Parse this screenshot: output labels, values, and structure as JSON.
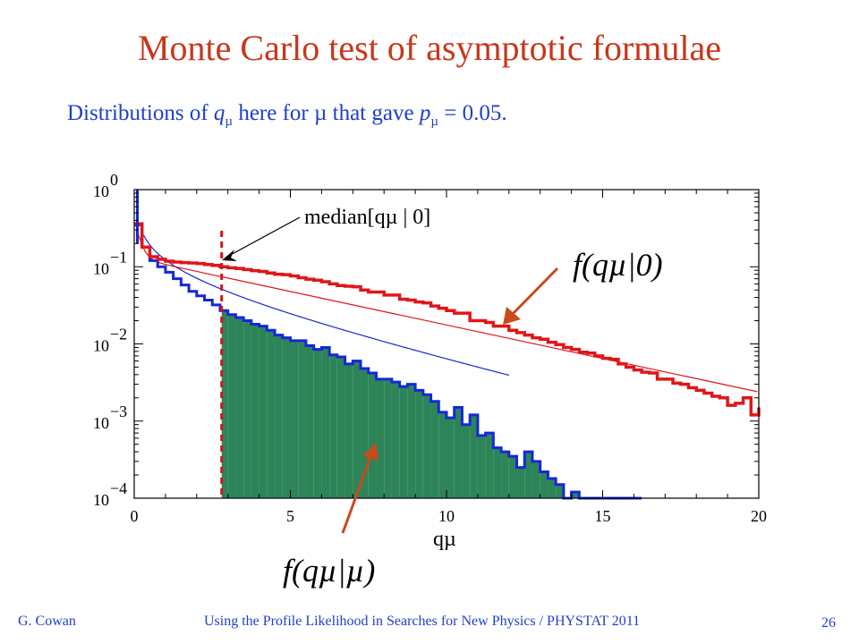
{
  "slide": {
    "title": "Monte Carlo test of asymptotic formulae",
    "subtitle_pre": "Distributions of ",
    "subtitle_q": "q",
    "subtitle_mu1": "µ",
    "subtitle_mid": " here for ",
    "subtitle_mu2": "µ",
    "subtitle_mid2": " that gave ",
    "subtitle_p": "p",
    "subtitle_mu3": "µ",
    "subtitle_post": " = 0.05.",
    "author": "G. Cowan",
    "talk": "Using the Profile Likelihood in Searches for New Physics / PHYSTAT 2011",
    "page": "26"
  },
  "colors": {
    "title": "#c8371a",
    "text": "#1f3fc8",
    "red_hist": "#e0161a",
    "blue_hist": "#1428d8",
    "green_fill": "#2e8459",
    "arrow": "#c84a1e"
  },
  "chart_data": {
    "type": "step-histogram",
    "xlabel": "qµ",
    "xlim": [
      0,
      20
    ],
    "ylim": [
      0.0001,
      1
    ],
    "yscale": "log",
    "x_ticks": [
      "0",
      "5",
      "10",
      "15",
      "20"
    ],
    "y_ticks": [
      {
        "base": "10",
        "exp": "0"
      },
      {
        "base": "10",
        "exp": "−1"
      },
      {
        "base": "10",
        "exp": "−2"
      },
      {
        "base": "10",
        "exp": "−3"
      },
      {
        "base": "10",
        "exp": "−4"
      }
    ],
    "median_line_x": 2.8,
    "annotations": {
      "median": "median[qµ | 0]",
      "f0": "f(qµ|0)",
      "fmu": "f(qµ|µ)"
    },
    "series": [
      {
        "name": "f(qµ|0)",
        "color": "#e0161a",
        "bin_width": 0.25,
        "bins": [
          [
            0,
            0.36
          ],
          [
            0.25,
            0.18
          ],
          [
            0.5,
            0.135
          ],
          [
            0.75,
            0.125
          ],
          [
            1,
            0.118
          ],
          [
            1.25,
            0.115
          ],
          [
            1.5,
            0.113
          ],
          [
            1.75,
            0.112
          ],
          [
            2,
            0.11
          ],
          [
            2.25,
            0.107
          ],
          [
            2.5,
            0.104
          ],
          [
            2.75,
            0.1
          ],
          [
            3,
            0.097
          ],
          [
            3.25,
            0.095
          ],
          [
            3.5,
            0.092
          ],
          [
            3.75,
            0.089
          ],
          [
            4,
            0.087
          ],
          [
            4.25,
            0.083
          ],
          [
            4.5,
            0.08
          ],
          [
            4.75,
            0.079
          ],
          [
            5,
            0.076
          ],
          [
            5.25,
            0.072
          ],
          [
            5.5,
            0.069
          ],
          [
            5.75,
            0.067
          ],
          [
            6,
            0.064
          ],
          [
            6.25,
            0.06
          ],
          [
            6.5,
            0.057
          ],
          [
            6.75,
            0.056
          ],
          [
            7,
            0.055
          ],
          [
            7.25,
            0.05
          ],
          [
            7.5,
            0.047
          ],
          [
            7.75,
            0.047
          ],
          [
            8,
            0.043
          ],
          [
            8.25,
            0.043
          ],
          [
            8.5,
            0.038
          ],
          [
            8.75,
            0.037
          ],
          [
            9,
            0.035
          ],
          [
            9.25,
            0.034
          ],
          [
            9.5,
            0.031
          ],
          [
            9.75,
            0.029
          ],
          [
            10,
            0.027
          ],
          [
            10.25,
            0.025
          ],
          [
            10.5,
            0.025
          ],
          [
            10.75,
            0.02
          ],
          [
            11,
            0.02
          ],
          [
            11.25,
            0.019
          ],
          [
            11.5,
            0.017
          ],
          [
            11.75,
            0.017
          ],
          [
            12,
            0.015
          ],
          [
            12.25,
            0.014
          ],
          [
            12.5,
            0.013
          ],
          [
            12.75,
            0.012
          ],
          [
            13,
            0.0115
          ],
          [
            13.25,
            0.0105
          ],
          [
            13.5,
            0.0098
          ],
          [
            13.75,
            0.009
          ],
          [
            14,
            0.0085
          ],
          [
            14.25,
            0.0078
          ],
          [
            14.5,
            0.0076
          ],
          [
            14.75,
            0.007
          ],
          [
            15,
            0.0065
          ],
          [
            15.25,
            0.0063
          ],
          [
            15.5,
            0.0055
          ],
          [
            15.75,
            0.005
          ],
          [
            16,
            0.0046
          ],
          [
            16.25,
            0.0043
          ],
          [
            16.5,
            0.0042
          ],
          [
            16.75,
            0.0035
          ],
          [
            17,
            0.0035
          ],
          [
            17.25,
            0.0031
          ],
          [
            17.5,
            0.003
          ],
          [
            17.75,
            0.0027
          ],
          [
            18,
            0.0025
          ],
          [
            18.25,
            0.0023
          ],
          [
            18.5,
            0.0021
          ],
          [
            18.75,
            0.002
          ],
          [
            19,
            0.0016
          ],
          [
            19.25,
            0.0017
          ],
          [
            19.5,
            0.002
          ],
          [
            19.75,
            0.0012
          ],
          [
            20,
            0.0015
          ]
        ]
      },
      {
        "name": "f(qµ|µ)",
        "color": "#1428d8",
        "fill": "#2e8459",
        "fill_from": 2.8,
        "bin_width": 0.25,
        "bins": [
          [
            0,
            0.35
          ],
          [
            0.25,
            0.18
          ],
          [
            0.5,
            0.12
          ],
          [
            0.75,
            0.1
          ],
          [
            1,
            0.085
          ],
          [
            1.25,
            0.07
          ],
          [
            1.5,
            0.058
          ],
          [
            1.75,
            0.048
          ],
          [
            2,
            0.042
          ],
          [
            2.25,
            0.037
          ],
          [
            2.5,
            0.032
          ],
          [
            2.75,
            0.027
          ],
          [
            3,
            0.024
          ],
          [
            3.25,
            0.022
          ],
          [
            3.5,
            0.02
          ],
          [
            3.75,
            0.018
          ],
          [
            4,
            0.017
          ],
          [
            4.25,
            0.015
          ],
          [
            4.5,
            0.013
          ],
          [
            4.75,
            0.012
          ],
          [
            5,
            0.011
          ],
          [
            5.25,
            0.011
          ],
          [
            5.5,
            0.0095
          ],
          [
            5.75,
            0.0085
          ],
          [
            6,
            0.009
          ],
          [
            6.25,
            0.0072
          ],
          [
            6.5,
            0.0068
          ],
          [
            6.75,
            0.0055
          ],
          [
            7,
            0.006
          ],
          [
            7.25,
            0.0048
          ],
          [
            7.5,
            0.0042
          ],
          [
            7.75,
            0.0035
          ],
          [
            8,
            0.0035
          ],
          [
            8.25,
            0.0032
          ],
          [
            8.5,
            0.0028
          ],
          [
            8.75,
            0.003
          ],
          [
            9,
            0.0025
          ],
          [
            9.25,
            0.0022
          ],
          [
            9.5,
            0.0018
          ],
          [
            9.75,
            0.0013
          ],
          [
            10,
            0.0011
          ],
          [
            10.25,
            0.0015
          ],
          [
            10.5,
            0.0009
          ],
          [
            10.75,
            0.0012
          ],
          [
            11,
            0.00065
          ],
          [
            11.25,
            0.0007
          ],
          [
            11.5,
            0.00045
          ],
          [
            11.75,
            0.0004
          ],
          [
            12,
            0.00035
          ],
          [
            12.25,
            0.00025
          ],
          [
            12.5,
            0.0004
          ],
          [
            12.75,
            0.0003
          ],
          [
            13,
            0.00022
          ],
          [
            13.25,
            0.00018
          ],
          [
            13.5,
            0.00015
          ],
          [
            13.75,
            0.0001
          ],
          [
            14,
            0.00012
          ],
          [
            14.25,
            0.0001
          ],
          [
            14.5,
            0.0001
          ],
          [
            14.75,
            9e-05
          ],
          [
            15,
            7e-05
          ],
          [
            15.25,
            5e-05
          ],
          [
            15.5,
            4e-05
          ],
          [
            15.75,
            3e-05
          ],
          [
            16,
            2e-05
          ]
        ]
      }
    ]
  }
}
